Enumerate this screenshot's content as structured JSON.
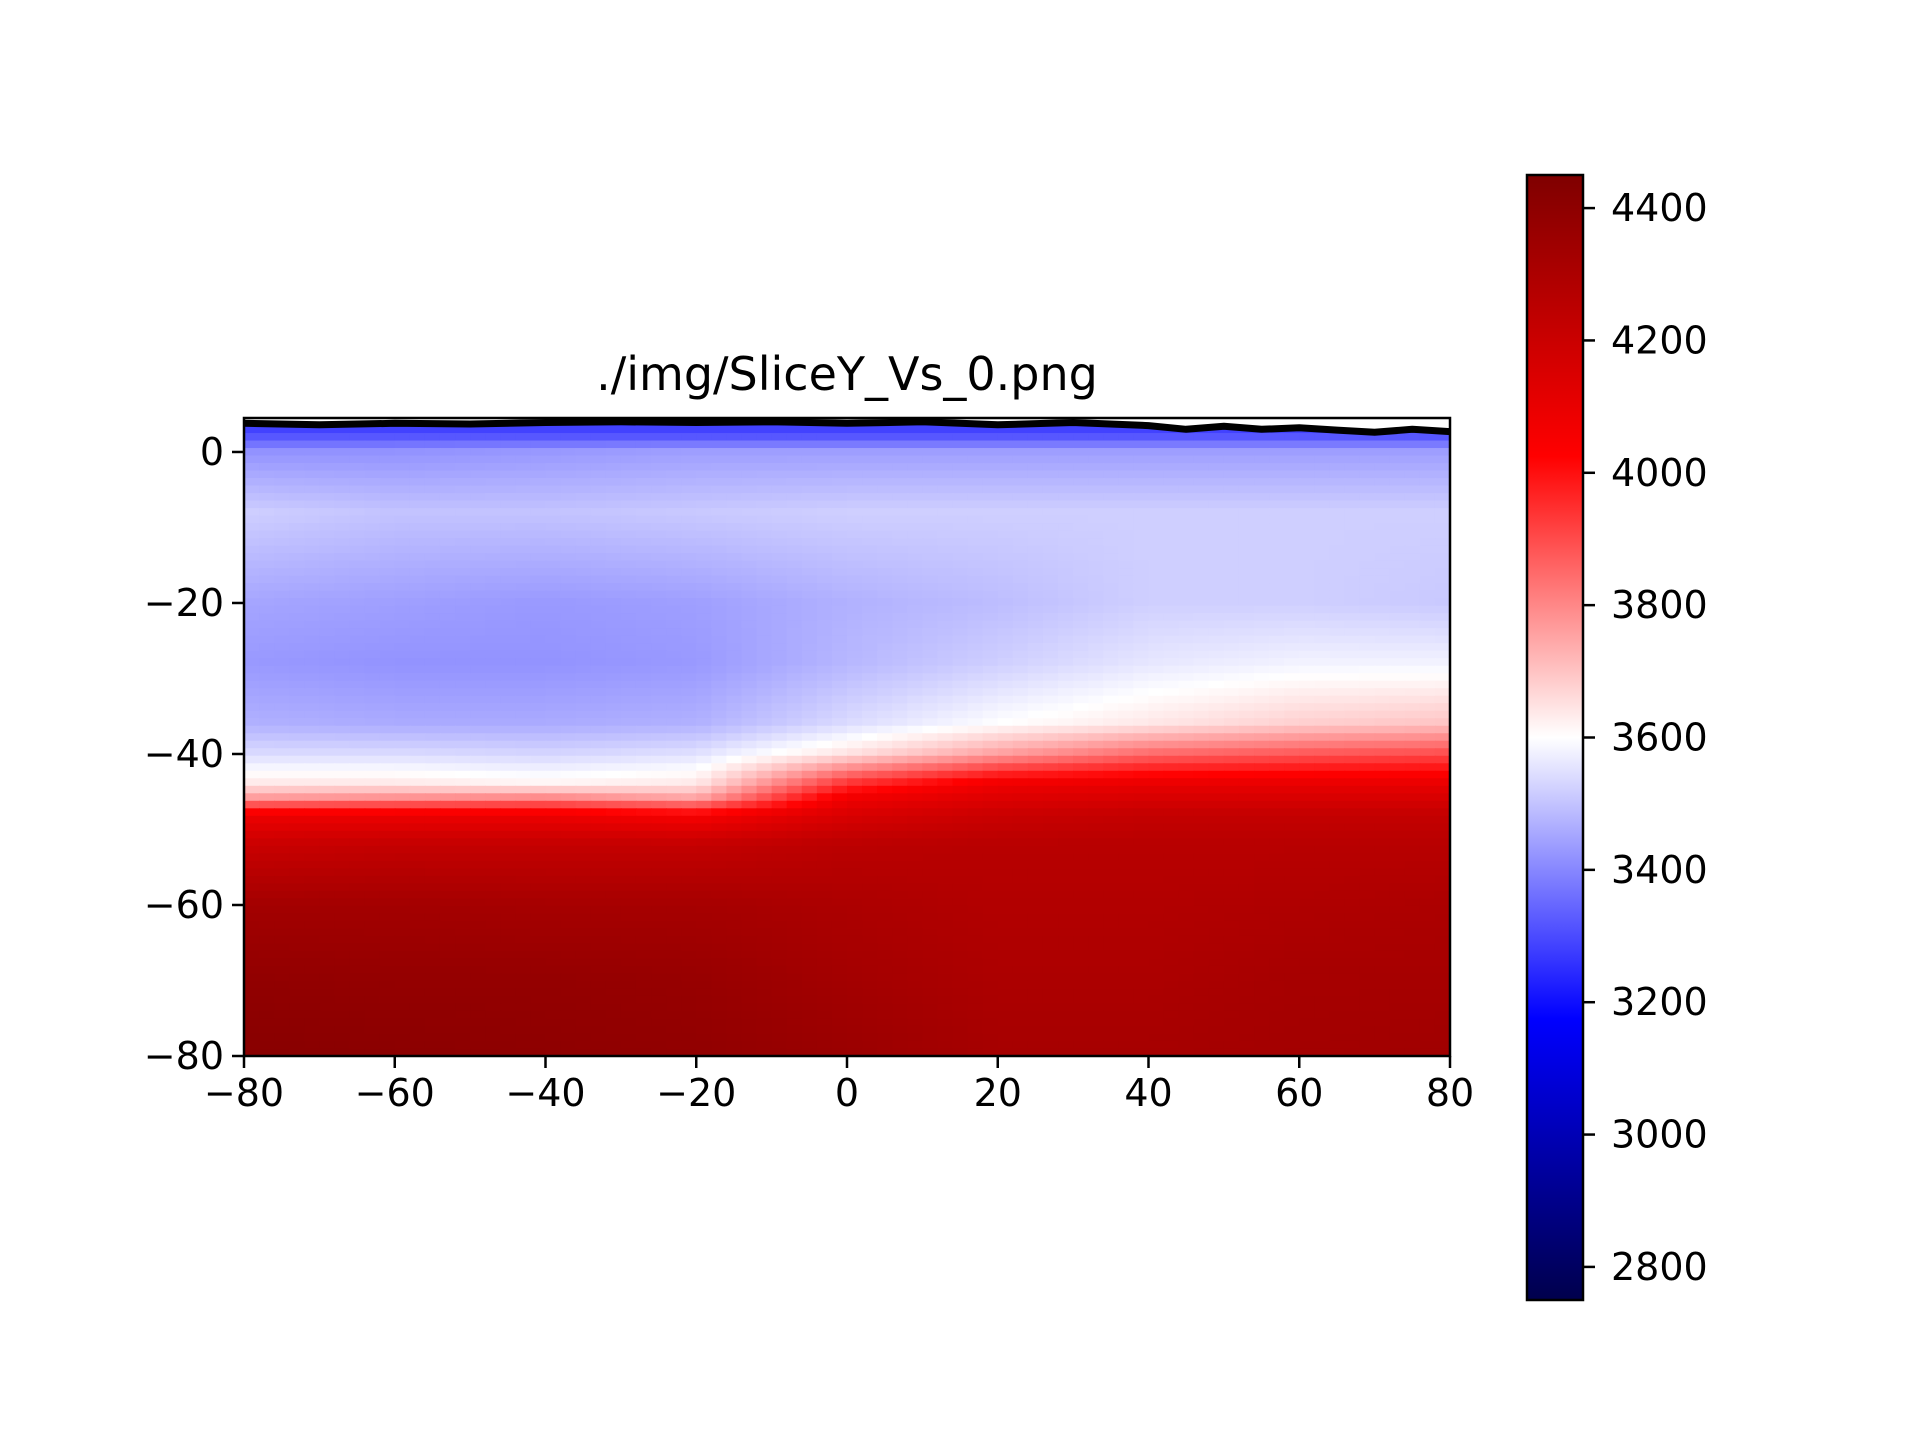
{
  "chart_data": {
    "type": "heatmap",
    "title": "./img/SliceY_Vs_0.png",
    "xlabel": "",
    "ylabel": "",
    "xlim": [
      -80,
      80
    ],
    "ylim": [
      -80,
      4.5
    ],
    "x_ticks": [
      -80,
      -60,
      -40,
      -20,
      0,
      20,
      40,
      60,
      80
    ],
    "x_tick_labels": [
      "−80",
      "−60",
      "−40",
      "−20",
      "0",
      "20",
      "40",
      "60",
      "80"
    ],
    "y_ticks": [
      0,
      -20,
      -40,
      -60,
      -80
    ],
    "y_tick_labels": [
      "0",
      "−20",
      "−40",
      "−60",
      "−80"
    ],
    "colormap": "seismic",
    "colorbar": {
      "vmin": 2750,
      "vmax": 4450,
      "ticks": [
        4400,
        4200,
        4000,
        3800,
        3600,
        3400,
        3200,
        3000,
        2800
      ],
      "tick_labels": [
        "4400",
        "4200",
        "4000",
        "3800",
        "3600",
        "3400",
        "3200",
        "3000",
        "2800"
      ],
      "stops": [
        {
          "value": 2750,
          "color": "#00004c"
        },
        {
          "value": 3175,
          "color": "#0000ff"
        },
        {
          "value": 3600,
          "color": "#ffffff"
        },
        {
          "value": 4025,
          "color": "#ff0000"
        },
        {
          "value": 4450,
          "color": "#7f0000"
        }
      ]
    },
    "surface_line": {
      "color": "#000000",
      "points": [
        [
          -80,
          3.8
        ],
        [
          -70,
          3.6
        ],
        [
          -60,
          3.8
        ],
        [
          -50,
          3.7
        ],
        [
          -40,
          3.9
        ],
        [
          -30,
          4.0
        ],
        [
          -20,
          3.9
        ],
        [
          -10,
          4.0
        ],
        [
          0,
          3.8
        ],
        [
          10,
          4.0
        ],
        [
          20,
          3.6
        ],
        [
          30,
          3.9
        ],
        [
          40,
          3.5
        ],
        [
          45,
          3.0
        ],
        [
          50,
          3.4
        ],
        [
          55,
          3.0
        ],
        [
          60,
          3.2
        ],
        [
          65,
          2.9
        ],
        [
          70,
          2.6
        ],
        [
          75,
          3.0
        ],
        [
          80,
          2.7
        ]
      ]
    },
    "profile_x": [
      -80,
      -60,
      -40,
      -20,
      0,
      20,
      40,
      60,
      80
    ],
    "profile_depths": [
      4,
      2,
      0,
      -8,
      -20,
      -28,
      -36,
      -40,
      -44,
      -46,
      -48,
      -52,
      -60,
      -70,
      -80
    ],
    "values": [
      [
        3250,
        3250,
        3250,
        3250,
        3250,
        3250,
        3250,
        3250,
        3250
      ],
      [
        3320,
        3320,
        3320,
        3320,
        3320,
        3320,
        3320,
        3320,
        3320
      ],
      [
        3420,
        3420,
        3430,
        3440,
        3440,
        3440,
        3440,
        3440,
        3440
      ],
      [
        3520,
        3500,
        3500,
        3510,
        3520,
        3520,
        3520,
        3520,
        3520
      ],
      [
        3450,
        3440,
        3430,
        3440,
        3470,
        3490,
        3520,
        3520,
        3510
      ],
      [
        3430,
        3420,
        3420,
        3430,
        3480,
        3520,
        3560,
        3580,
        3580
      ],
      [
        3470,
        3460,
        3460,
        3470,
        3540,
        3600,
        3640,
        3680,
        3700
      ],
      [
        3540,
        3540,
        3530,
        3550,
        3650,
        3760,
        3850,
        3880,
        3900
      ],
      [
        3640,
        3640,
        3620,
        3640,
        3950,
        4080,
        4100,
        4100,
        4100
      ],
      [
        3780,
        3800,
        3820,
        3760,
        4080,
        4140,
        4160,
        4160,
        4160
      ],
      [
        4080,
        4080,
        4080,
        4040,
        4150,
        4200,
        4220,
        4220,
        4220
      ],
      [
        4200,
        4220,
        4220,
        4220,
        4250,
        4260,
        4260,
        4260,
        4260
      ],
      [
        4330,
        4330,
        4320,
        4320,
        4300,
        4280,
        4280,
        4290,
        4300
      ],
      [
        4390,
        4380,
        4380,
        4370,
        4330,
        4300,
        4300,
        4320,
        4320
      ],
      [
        4420,
        4410,
        4400,
        4390,
        4360,
        4320,
        4320,
        4330,
        4340
      ]
    ]
  }
}
